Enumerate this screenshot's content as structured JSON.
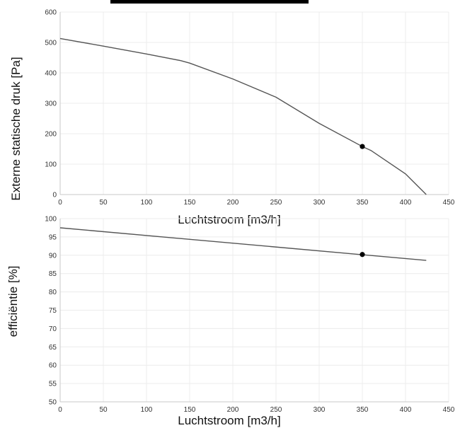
{
  "header_bar_color": "#000000",
  "chart_data": [
    {
      "type": "line",
      "xlabel": "Luchtstroom [m3/h]",
      "ylabel": "Externe statische druk [Pa]",
      "xlim": [
        0,
        450
      ],
      "ylim": [
        0,
        600
      ],
      "x_ticks": [
        0,
        50,
        100,
        150,
        200,
        250,
        300,
        350,
        400,
        450
      ],
      "y_ticks": [
        0,
        100,
        200,
        300,
        400,
        500,
        600
      ],
      "grid": true,
      "line_color": "#555555",
      "series": [
        {
          "x": [
            0,
            50,
            100,
            140,
            150,
            200,
            250,
            300,
            350,
            360,
            400,
            424
          ],
          "y": [
            513,
            488,
            462,
            440,
            432,
            380,
            320,
            234,
            158,
            145,
            68,
            0
          ]
        }
      ],
      "marker": {
        "x": 350,
        "y": 158
      }
    },
    {
      "type": "line",
      "xlabel": "Luchtstroom [m3/h]",
      "ylabel": "efficiëntie [%]",
      "xlim": [
        0,
        450
      ],
      "ylim": [
        50,
        100
      ],
      "x_ticks": [
        0,
        50,
        100,
        150,
        200,
        250,
        300,
        350,
        400,
        450
      ],
      "y_ticks": [
        50,
        55,
        60,
        65,
        70,
        75,
        80,
        85,
        90,
        95,
        100
      ],
      "grid": true,
      "line_color": "#555555",
      "series": [
        {
          "x": [
            0,
            424
          ],
          "y": [
            97.5,
            88.6
          ]
        }
      ],
      "marker": {
        "x": 350,
        "y": 90.2
      }
    }
  ]
}
